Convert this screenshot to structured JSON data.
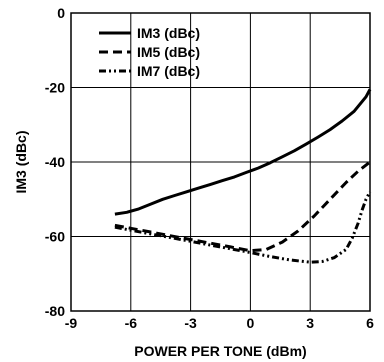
{
  "chart_data": {
    "type": "line",
    "title": "",
    "xlabel": "POWER PER TONE (dBm)",
    "ylabel": "IM3 (dBc)",
    "xlim": [
      -9,
      6
    ],
    "ylim": [
      -80,
      0
    ],
    "xticks": [
      -9,
      -6,
      -3,
      0,
      3,
      6
    ],
    "yticks": [
      0,
      -20,
      -40,
      -60,
      -80
    ],
    "grid": true,
    "legend_position": "top-left",
    "series": [
      {
        "name": "IM3 (dBc)",
        "style": "solid",
        "color": "#000000",
        "x": [
          -6.8,
          -6.2,
          -5.6,
          -5.0,
          -4.4,
          -3.8,
          -3.2,
          -2.6,
          -2.0,
          -1.4,
          -0.8,
          -0.2,
          0.4,
          1.0,
          1.6,
          2.2,
          2.8,
          3.4,
          4.0,
          4.6,
          5.2,
          5.8,
          6.0
        ],
        "y": [
          -54.0,
          -53.5,
          -52.6,
          -51.3,
          -50.0,
          -49.0,
          -48.0,
          -47.0,
          -46.0,
          -45.0,
          -44.0,
          -42.8,
          -41.6,
          -40.2,
          -38.6,
          -37.0,
          -35.2,
          -33.3,
          -31.3,
          -29.0,
          -26.4,
          -22.5,
          -20.5
        ]
      },
      {
        "name": "IM5 (dBc)",
        "style": "dashed",
        "color": "#000000",
        "x": [
          -6.8,
          -6.0,
          -5.0,
          -4.0,
          -3.0,
          -2.0,
          -1.0,
          0.0,
          0.8,
          1.6,
          2.4,
          3.2,
          4.0,
          4.8,
          5.4,
          6.0
        ],
        "y": [
          -57.0,
          -57.8,
          -58.8,
          -59.8,
          -60.8,
          -61.8,
          -62.8,
          -63.8,
          -63.5,
          -61.5,
          -58.5,
          -54.5,
          -50.0,
          -45.5,
          -42.5,
          -40.0
        ]
      },
      {
        "name": "IM7 (dBc)",
        "style": "dash-dot",
        "color": "#000000",
        "x": [
          -6.8,
          -6.0,
          -5.0,
          -4.0,
          -3.0,
          -2.0,
          -1.0,
          0.0,
          1.0,
          2.0,
          3.0,
          3.6,
          4.2,
          4.8,
          5.1,
          5.4,
          5.6,
          5.8,
          6.0
        ],
        "y": [
          -57.5,
          -58.3,
          -59.3,
          -60.3,
          -61.3,
          -62.3,
          -63.3,
          -64.3,
          -65.4,
          -66.3,
          -66.9,
          -66.7,
          -65.7,
          -63.5,
          -60.5,
          -56.5,
          -53.0,
          -50.0,
          -48.0
        ]
      }
    ]
  }
}
